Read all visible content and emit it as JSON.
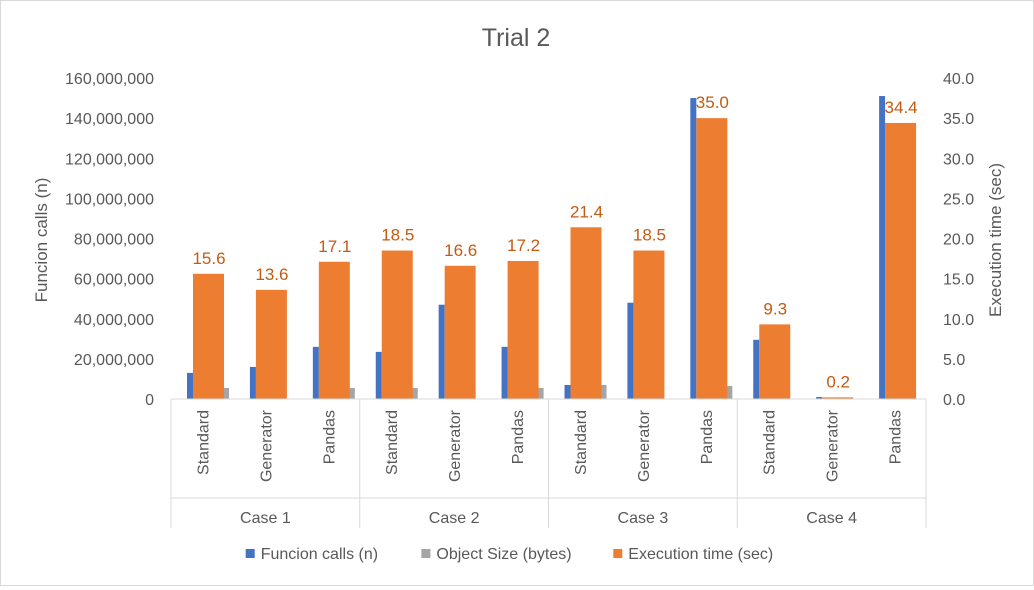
{
  "chart_data": {
    "type": "bar",
    "title": "Trial 2",
    "ylabel": "Funcion calls (n)",
    "y2label": "Execution time (sec)",
    "ylim": [
      0,
      160000000
    ],
    "y2lim": [
      0,
      40
    ],
    "yticks": [
      "0",
      "20,000,000",
      "40,000,000",
      "60,000,000",
      "80,000,000",
      "100,000,000",
      "120,000,000",
      "140,000,000",
      "160,000,000"
    ],
    "y2ticks": [
      "0.0",
      "5.0",
      "10.0",
      "15.0",
      "20.0",
      "25.0",
      "30.0",
      "35.0",
      "40.0"
    ],
    "groups": [
      "Case 1",
      "Case 2",
      "Case 3",
      "Case 4"
    ],
    "categories": [
      "Standard",
      "Generator",
      "Pandas",
      "Standard",
      "Generator",
      "Pandas",
      "Standard",
      "Generator",
      "Pandas",
      "Standard",
      "Generator",
      "Pandas"
    ],
    "grid": false,
    "legend_position": "bottom",
    "series": [
      {
        "name": "Funcion calls (n)",
        "axis": "left",
        "color": "#4472c4",
        "values": [
          13000000,
          16000000,
          26000000,
          23500000,
          47000000,
          26000000,
          7000000,
          48000000,
          150000000,
          29500000,
          1000000,
          151000000
        ]
      },
      {
        "name": "Object Size (bytes)",
        "axis": "left",
        "color": "#a5a5a5",
        "values": [
          5500000,
          0,
          5500000,
          5500000,
          0,
          5500000,
          7000000,
          0,
          6500000,
          0,
          0,
          0
        ]
      },
      {
        "name": "Execution time (sec)",
        "axis": "right",
        "color": "#ed7d31",
        "values": [
          15.6,
          13.6,
          17.1,
          18.5,
          16.6,
          17.2,
          21.4,
          18.5,
          35.0,
          9.3,
          0.2,
          34.4
        ],
        "data_labels": [
          "15.6",
          "13.6",
          "17.1",
          "18.5",
          "16.6",
          "17.2",
          "21.4",
          "18.5",
          "35.0",
          "9.3",
          "0.2",
          "34.4"
        ],
        "label_color": "#c55a11"
      }
    ]
  }
}
